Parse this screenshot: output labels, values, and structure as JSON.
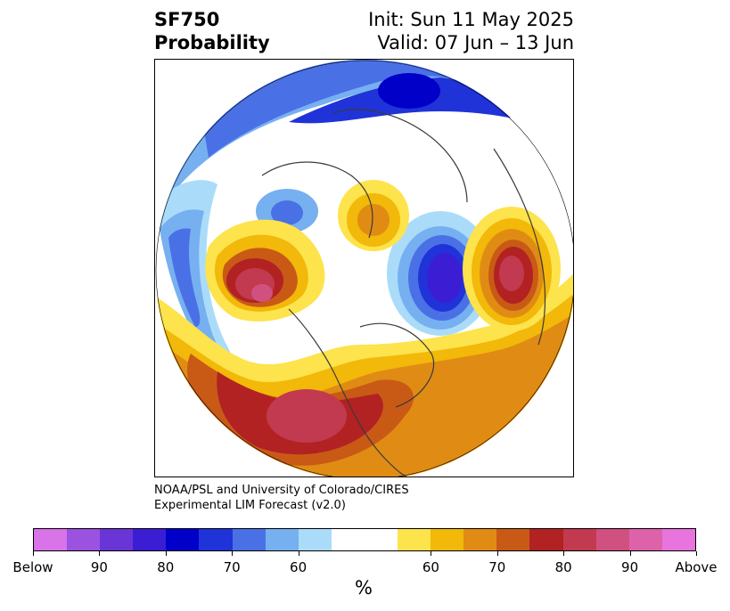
{
  "title": {
    "left_line1": "SF750",
    "left_line2": "Probability",
    "right_line1": "Init: Sun 11 May 2025",
    "right_line2": "Valid: 07 Jun – 13 Jun"
  },
  "credit": {
    "line1": "NOAA/PSL and University of Colorado/CIRES",
    "line2": "Experimental LIM Forecast (v2.0)"
  },
  "map": {
    "projection": "north-polar-stereographic",
    "field": "SF750 probability anomaly",
    "colors": {
      "below_levels": [
        "#d873e8",
        "#9b52e0",
        "#6a35d6",
        "#3b1dd4",
        "#0000c8",
        "#2033d8",
        "#4a70e6",
        "#76b0f0",
        "#aadcfa"
      ],
      "neutral": "#ffffff",
      "above_levels": [
        "#fde34c",
        "#f2b80a",
        "#e08c14",
        "#c85a16",
        "#b22222",
        "#c23a50",
        "#d05080",
        "#dd62aa",
        "#e874dd"
      ]
    },
    "features": [
      {
        "name": "north-pacific-warm-anomaly",
        "sign": "above",
        "peak": "80-90"
      },
      {
        "name": "north-america-warm-anomaly",
        "sign": "above",
        "peak": "80-90"
      },
      {
        "name": "europe-warm-anomaly",
        "sign": "above",
        "peak": "80-90"
      },
      {
        "name": "siberia-cold-anomaly",
        "sign": "below",
        "peak": "90-Below"
      },
      {
        "name": "north-africa-cold-anomaly",
        "sign": "below",
        "peak": "90"
      },
      {
        "name": "equatorial-pacific-cold-anomaly",
        "sign": "below",
        "peak": "70"
      }
    ]
  },
  "colorbar": {
    "segments": [
      "#d873e8",
      "#9b52e0",
      "#6a35d6",
      "#3b1dd4",
      "#0000c8",
      "#2033d8",
      "#4a70e6",
      "#76b0f0",
      "#aadcfa",
      "#ffffff",
      "#ffffff",
      "#fde34c",
      "#f2b80a",
      "#e08c14",
      "#c85a16",
      "#b22222",
      "#c23a50",
      "#d05080",
      "#dd62aa",
      "#e874dd"
    ],
    "ticks": [
      "Below",
      "90",
      "80",
      "70",
      "60",
      "60",
      "70",
      "80",
      "90",
      "Above"
    ],
    "unit": "%"
  }
}
